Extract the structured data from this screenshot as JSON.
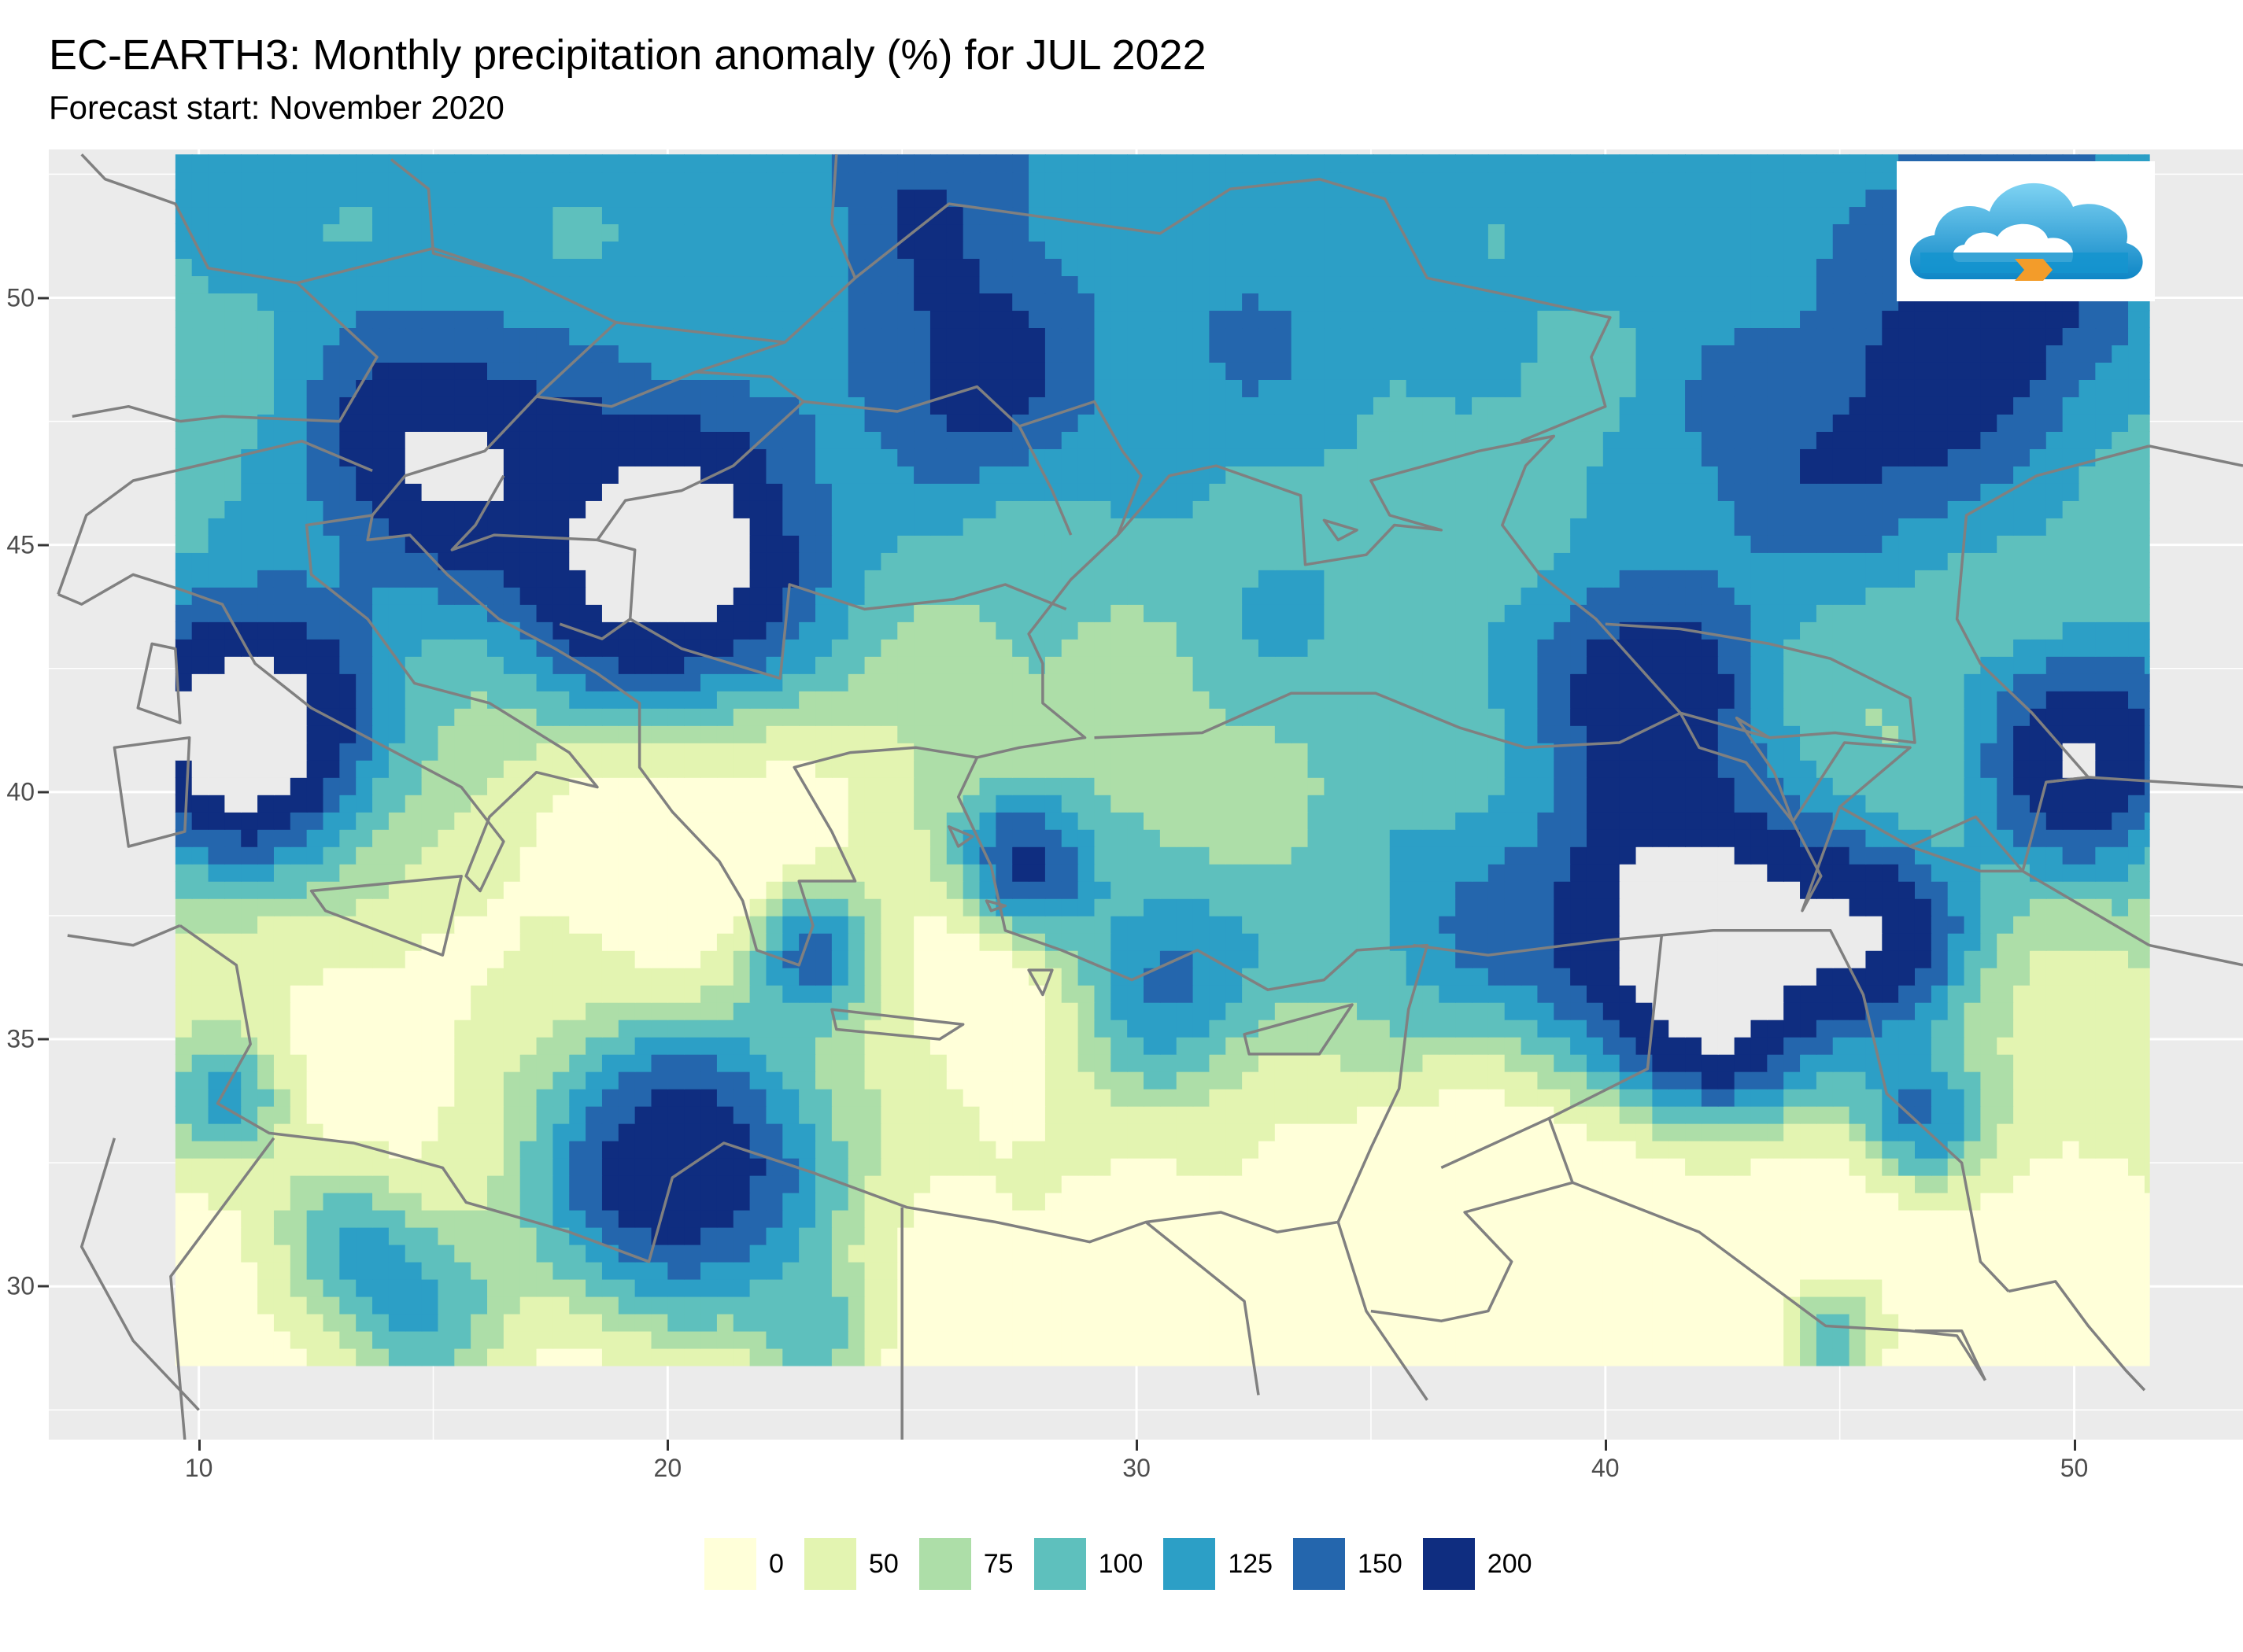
{
  "title": "EC-EARTH3: Monthly precipitation anomaly (%) for JUL 2022",
  "subtitle": "Forecast start: November 2020",
  "chart_data": {
    "type": "heatmap",
    "title": "EC-EARTH3: Monthly precipitation anomaly (%) for JUL 2022",
    "subtitle": "Forecast start: November 2020",
    "xlim": [
      6.8,
      53.6
    ],
    "ylim": [
      26.9,
      53.0
    ],
    "x_ticks": [
      "10",
      "20",
      "30",
      "40",
      "50"
    ],
    "y_ticks": [
      "30",
      "35",
      "40",
      "45",
      "50"
    ],
    "grid": true,
    "legend_placement": "bottom",
    "legend": [
      {
        "label": "0",
        "color": "#ffffd9"
      },
      {
        "label": "50",
        "color": "#e3f4b1"
      },
      {
        "label": "75",
        "color": "#addea8"
      },
      {
        "label": "100",
        "color": "#5ec0bd"
      },
      {
        "label": "125",
        "color": "#2c9fc6"
      },
      {
        "label": "150",
        "color": "#2466ad"
      },
      {
        "label": "200",
        "color": "#0f2d80"
      }
    ],
    "data_extent": {
      "lon": [
        9.5,
        51.6
      ],
      "lat": [
        28.4,
        52.9
      ]
    }
  },
  "logo": {
    "name": "cloud-logo-icon"
  }
}
